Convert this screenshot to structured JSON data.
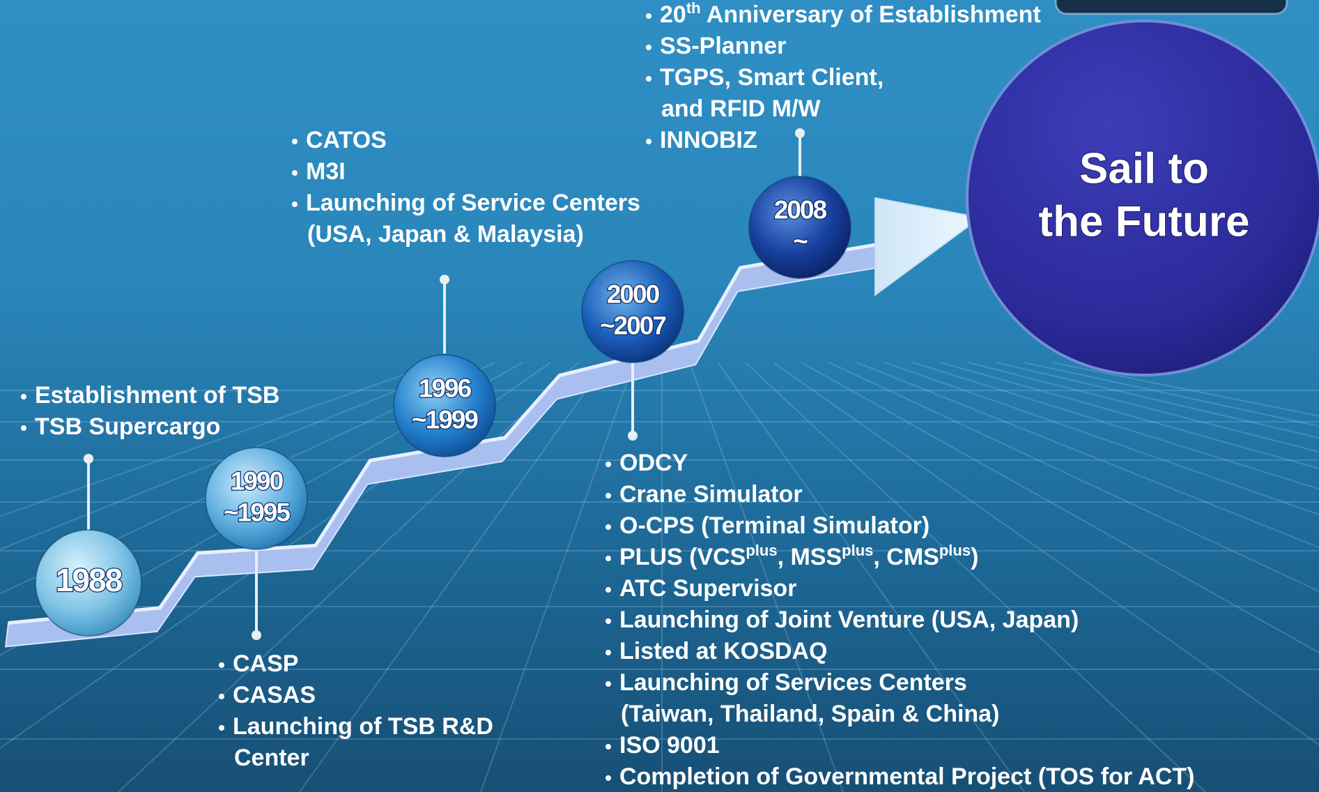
{
  "milestones": [
    {
      "label": [
        "1988"
      ],
      "items": [
        {
          "lines": [
            "Establishment of TSB"
          ]
        },
        {
          "lines": [
            "TSB Supercargo"
          ]
        }
      ]
    },
    {
      "label": [
        "1990",
        "~1995"
      ],
      "items": [
        {
          "lines": [
            "CASP"
          ]
        },
        {
          "lines": [
            "CASAS"
          ]
        },
        {
          "lines": [
            "Launching of TSB R&D",
            "Center"
          ]
        }
      ]
    },
    {
      "label": [
        "1996",
        "~1999"
      ],
      "items": [
        {
          "lines": [
            "CATOS"
          ]
        },
        {
          "lines": [
            "M3I"
          ]
        },
        {
          "lines": [
            "Launching of Service Centers",
            "(USA, Japan & Malaysia)"
          ]
        }
      ]
    },
    {
      "label": [
        "2000",
        "~2007"
      ],
      "items": [
        {
          "lines": [
            "ODCY"
          ]
        },
        {
          "lines": [
            "Crane Simulator"
          ]
        },
        {
          "lines": [
            "O-CPS (Terminal Simulator)"
          ]
        },
        {
          "lines": [
            [
              {
                "text": "PLUS (VCS"
              },
              {
                "sup": "plus"
              },
              {
                "text": ", MSS"
              },
              {
                "sup": "plus"
              },
              {
                "text": ", CMS"
              },
              {
                "sup": "plus"
              },
              {
                "text": ")"
              }
            ]
          ]
        },
        {
          "lines": [
            "ATC Supervisor"
          ]
        },
        {
          "lines": [
            "Launching of Joint Venture (USA, Japan)"
          ]
        },
        {
          "lines": [
            "Listed at KOSDAQ"
          ]
        },
        {
          "lines": [
            "Launching of Services Centers",
            "(Taiwan, Thailand, Spain & China)"
          ]
        },
        {
          "lines": [
            "ISO 9001"
          ]
        },
        {
          "lines": [
            "Completion of Governmental Project  (TOS for ACT)"
          ]
        }
      ]
    },
    {
      "label": [
        "2008",
        "~"
      ],
      "items": [
        {
          "lines": [
            [
              {
                "text": "20"
              },
              {
                "sup": "th"
              },
              {
                "text": " Anniversary of Establishment"
              }
            ]
          ]
        },
        {
          "lines": [
            "SS-Planner"
          ]
        },
        {
          "lines": [
            "TGPS, Smart Client,",
            "and RFID M/W"
          ]
        },
        {
          "lines": [
            "INNOBIZ"
          ]
        }
      ]
    }
  ],
  "goal": [
    "Sail to",
    "the Future"
  ]
}
